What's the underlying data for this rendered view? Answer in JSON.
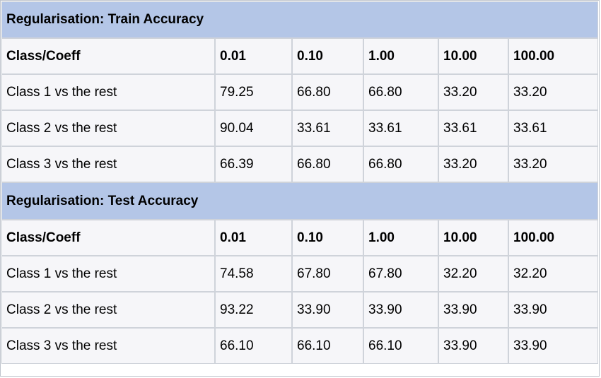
{
  "train": {
    "title": "Regularisation: Train Accuracy",
    "headers": [
      "Class/Coeff",
      "0.01",
      "0.10",
      "1.00",
      "10.00",
      "100.00"
    ],
    "rows": [
      [
        "Class 1 vs the rest",
        "79.25",
        "66.80",
        "66.80",
        "33.20",
        "33.20"
      ],
      [
        "Class 2 vs the rest",
        "90.04",
        "33.61",
        "33.61",
        "33.61",
        "33.61"
      ],
      [
        "Class 3 vs the rest",
        "66.39",
        "66.80",
        "66.80",
        "33.20",
        "33.20"
      ]
    ]
  },
  "test": {
    "title": "Regularisation: Test Accuracy",
    "headers": [
      "Class/Coeff",
      "0.01",
      "0.10",
      "1.00",
      "10.00",
      "100.00"
    ],
    "rows": [
      [
        "Class 1 vs the rest",
        "74.58",
        "67.80",
        "67.80",
        "32.20",
        "32.20"
      ],
      [
        "Class 2 vs the rest",
        "93.22",
        "33.90",
        "33.90",
        "33.90",
        "33.90"
      ],
      [
        "Class 3 vs the rest",
        "66.10",
        "66.10",
        "66.10",
        "33.90",
        "33.90"
      ]
    ]
  },
  "colors": {
    "title_background": "#b4c6e7",
    "cell_background": "#f6f6f9",
    "grid_line": "#cfd3da"
  }
}
